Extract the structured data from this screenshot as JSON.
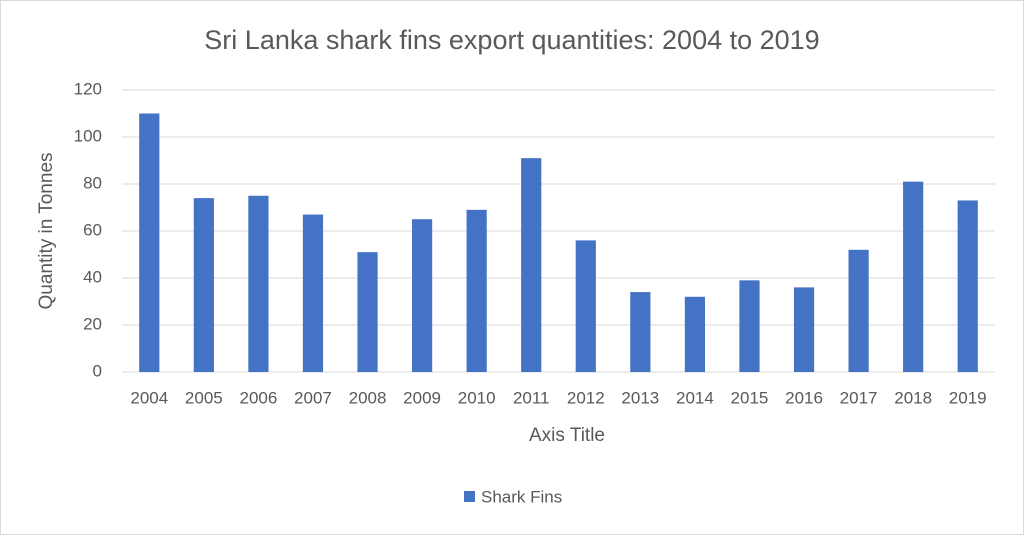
{
  "chart_data": {
    "type": "bar",
    "title": "Sri Lanka shark fins export quantities: 2004 to 2019",
    "x_label": "Axis Title",
    "y_label": "Quantity in Tonnes",
    "categories": [
      "2004",
      "2005",
      "2006",
      "2007",
      "2008",
      "2009",
      "2010",
      "2011",
      "2012",
      "2013",
      "2014",
      "2015",
      "2016",
      "2017",
      "2018",
      "2019"
    ],
    "series": [
      {
        "name": "Shark Fins",
        "color": "#4472c4",
        "values": [
          110,
          74,
          75,
          67,
          51,
          65,
          69,
          91,
          56,
          34,
          32,
          39,
          36,
          52,
          81,
          73
        ]
      }
    ],
    "ylim": [
      0,
      120
    ],
    "yticks": [
      0,
      20,
      40,
      60,
      80,
      100,
      120
    ],
    "grid": true,
    "legend": "bottom"
  }
}
